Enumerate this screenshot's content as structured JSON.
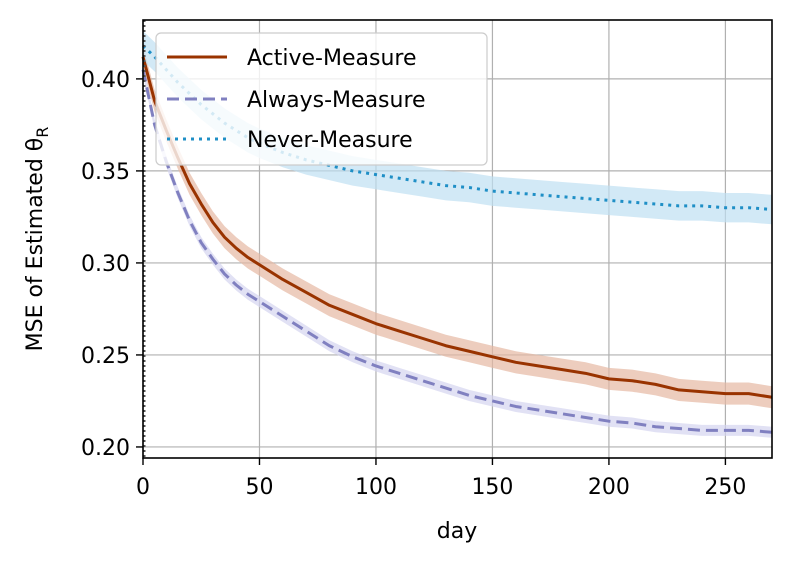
{
  "chart_data": {
    "type": "line",
    "title": "",
    "xlabel": "day",
    "ylabel": "MSE of Estimated θ",
    "ylabel_subscript": "R",
    "xlim": [
      0,
      270
    ],
    "ylim": [
      0.194,
      0.432
    ],
    "xticks": [
      0,
      50,
      100,
      150,
      200,
      250
    ],
    "yticks": [
      0.2,
      0.25,
      0.3,
      0.35,
      0.4
    ],
    "xtick_labels": [
      "0",
      "50",
      "100",
      "150",
      "200",
      "250"
    ],
    "ytick_labels": [
      "0.20",
      "0.25",
      "0.30",
      "0.35",
      "0.40"
    ],
    "grid": true,
    "legend_position": "top-left",
    "vline_x": 0,
    "series": [
      {
        "name": "Active-Measure",
        "color": "#993300",
        "band_color": "#e6b8a2",
        "style": "solid",
        "x": [
          0,
          5,
          10,
          15,
          20,
          25,
          30,
          35,
          40,
          45,
          50,
          60,
          70,
          80,
          90,
          100,
          110,
          120,
          130,
          140,
          150,
          160,
          170,
          180,
          190,
          200,
          210,
          220,
          230,
          240,
          250,
          260,
          270
        ],
        "values": [
          0.412,
          0.388,
          0.372,
          0.357,
          0.343,
          0.332,
          0.322,
          0.314,
          0.308,
          0.303,
          0.299,
          0.291,
          0.284,
          0.277,
          0.272,
          0.267,
          0.263,
          0.259,
          0.255,
          0.252,
          0.249,
          0.246,
          0.244,
          0.242,
          0.24,
          0.237,
          0.236,
          0.234,
          0.231,
          0.23,
          0.229,
          0.229,
          0.227
        ],
        "band_halfwidth": 0.006
      },
      {
        "name": "Always-Measure",
        "color": "#8080c0",
        "band_color": "#d4d4ef",
        "style": "dashed",
        "x": [
          0,
          5,
          10,
          15,
          20,
          25,
          30,
          35,
          40,
          45,
          50,
          60,
          70,
          80,
          90,
          100,
          110,
          120,
          130,
          140,
          150,
          160,
          170,
          180,
          190,
          200,
          210,
          220,
          230,
          240,
          250,
          260,
          270
        ],
        "values": [
          0.405,
          0.375,
          0.355,
          0.338,
          0.323,
          0.311,
          0.302,
          0.294,
          0.288,
          0.283,
          0.279,
          0.271,
          0.263,
          0.255,
          0.249,
          0.244,
          0.24,
          0.236,
          0.232,
          0.228,
          0.225,
          0.222,
          0.22,
          0.218,
          0.216,
          0.214,
          0.213,
          0.211,
          0.21,
          0.209,
          0.209,
          0.209,
          0.208
        ],
        "band_halfwidth": 0.003
      },
      {
        "name": "Never-Measure",
        "color": "#1f8fc6",
        "band_color": "#bfe0f2",
        "style": "dotted",
        "x": [
          0,
          5,
          10,
          15,
          20,
          25,
          30,
          35,
          40,
          45,
          50,
          60,
          70,
          80,
          90,
          100,
          110,
          120,
          130,
          140,
          150,
          160,
          170,
          180,
          190,
          200,
          210,
          220,
          230,
          240,
          250,
          260,
          270
        ],
        "values": [
          0.418,
          0.412,
          0.405,
          0.398,
          0.392,
          0.386,
          0.381,
          0.376,
          0.372,
          0.368,
          0.365,
          0.36,
          0.356,
          0.353,
          0.35,
          0.348,
          0.346,
          0.344,
          0.342,
          0.341,
          0.339,
          0.338,
          0.337,
          0.336,
          0.335,
          0.334,
          0.333,
          0.332,
          0.331,
          0.331,
          0.33,
          0.33,
          0.329
        ],
        "band_halfwidth": 0.008
      }
    ]
  }
}
